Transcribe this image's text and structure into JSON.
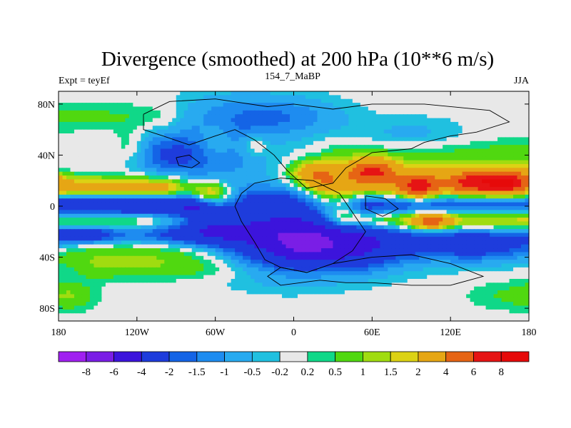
{
  "chart_data": {
    "type": "heatmap",
    "title": "Divergence (smoothed) at 200 hPa (10**6 m/s)",
    "subtitle": "154_7_MaBP",
    "left_label": "Expt = teyEf",
    "right_label": "JJA",
    "x_ticks": [
      "180",
      "120W",
      "60W",
      "0",
      "60E",
      "120E",
      "180"
    ],
    "y_ticks": [
      "80N",
      "40N",
      "0",
      "40S",
      "80S"
    ],
    "xlim": [
      -180,
      180
    ],
    "ylim": [
      -90,
      90
    ],
    "colorbar": {
      "labels": [
        "-8",
        "-6",
        "-4",
        "-2",
        "-1.5",
        "-1",
        "-0.5",
        "-0.2",
        "0.2",
        "0.5",
        "1",
        "1.5",
        "2",
        "4",
        "6",
        "8"
      ],
      "colors": [
        "#a020f0",
        "#7a1ee6",
        "#3c14dc",
        "#1e3cdc",
        "#1464e6",
        "#1e8cf0",
        "#28aaf0",
        "#20c0e0",
        "#e8e8e8",
        "#10d888",
        "#50d810",
        "#a0dc10",
        "#dcd214",
        "#e6a614",
        "#e66414",
        "#e61414",
        "#e60a0a"
      ]
    },
    "features": [
      {
        "type": "band",
        "center_lat": 0,
        "width": 7,
        "lon_range": [
          -180,
          -80
        ],
        "value": -4
      },
      {
        "type": "band",
        "center_lat": 0,
        "width": 8,
        "lon_range": [
          60,
          180
        ],
        "value": -3
      },
      {
        "type": "band",
        "center_lat": 14,
        "width": 6,
        "lon_range": [
          -180,
          -100
        ],
        "value": 3
      },
      {
        "type": "band",
        "center_lat": 18,
        "width": 10,
        "lon_range": [
          30,
          180
        ],
        "value": 3
      },
      {
        "type": "band",
        "center_lat": -10,
        "width": 6,
        "lon_range": [
          40,
          180
        ],
        "value": 3
      },
      {
        "type": "band",
        "center_lat": -10,
        "width": 6,
        "lon_range": [
          -180,
          -90
        ],
        "value": 2
      },
      {
        "type": "band",
        "center_lat": -22,
        "width": 6,
        "lon_range": [
          -180,
          -60
        ],
        "value": -1.5
      },
      {
        "type": "band",
        "center_lat": -38,
        "width": 8,
        "lon_range": [
          -180,
          -20
        ],
        "value": 1
      },
      {
        "type": "band",
        "center_lat": -50,
        "width": 6,
        "lon_range": [
          -150,
          20
        ],
        "value": 0.6
      },
      {
        "type": "band",
        "center_lat": 70,
        "width": 8,
        "lon_range": [
          -180,
          -100
        ],
        "value": 0.6
      },
      {
        "type": "band",
        "center_lat": 42,
        "width": 8,
        "lon_range": [
          40,
          180
        ],
        "value": 0.6
      },
      {
        "type": "band",
        "center_lat": -28,
        "width": 8,
        "lon_range": [
          60,
          180
        ],
        "value": -1
      },
      {
        "type": "blob",
        "lon": -10,
        "lat": -25,
        "dlon": 35,
        "dlat": 18,
        "value": -4
      },
      {
        "type": "blob",
        "lon": 30,
        "lat": -30,
        "dlon": 40,
        "dlat": 14,
        "value": -4
      },
      {
        "type": "blob",
        "lon": -70,
        "lat": -15,
        "dlon": 25,
        "dlat": 10,
        "value": -2
      },
      {
        "type": "blob",
        "lon": -95,
        "lat": 40,
        "dlon": 25,
        "dlat": 12,
        "value": -2
      },
      {
        "type": "blob",
        "lon": -50,
        "lat": 40,
        "dlon": 25,
        "dlat": 20,
        "value": -1
      },
      {
        "type": "blob",
        "lon": -40,
        "lat": 70,
        "dlon": 40,
        "dlat": 14,
        "value": -1
      },
      {
        "type": "blob",
        "lon": 0,
        "lat": 70,
        "dlon": 30,
        "dlat": 10,
        "value": -0.8
      },
      {
        "type": "blob",
        "lon": 90,
        "lat": 55,
        "dlon": 30,
        "dlat": 10,
        "value": -0.7
      },
      {
        "type": "blob",
        "lon": -20,
        "lat": 5,
        "dlon": 25,
        "dlat": 8,
        "value": -1.5
      },
      {
        "type": "blob",
        "lon": 15,
        "lat": 25,
        "dlon": 12,
        "dlat": 7,
        "value": 3
      },
      {
        "type": "blob",
        "lon": -65,
        "lat": 10,
        "dlon": 12,
        "dlat": 6,
        "value": 3
      },
      {
        "type": "blob",
        "lon": 60,
        "lat": 28,
        "dlon": 12,
        "dlat": 6,
        "value": 5
      },
      {
        "type": "blob",
        "lon": 95,
        "lat": 15,
        "dlon": 10,
        "dlat": 6,
        "value": 5
      },
      {
        "type": "blob",
        "lon": 140,
        "lat": 18,
        "dlon": 14,
        "dlat": 6,
        "value": 5
      },
      {
        "type": "blob",
        "lon": 165,
        "lat": 18,
        "dlon": 10,
        "dlat": 6,
        "value": 5
      },
      {
        "type": "blob",
        "lon": 105,
        "lat": -12,
        "dlon": 10,
        "dlat": 4,
        "value": 4
      },
      {
        "type": "blob",
        "lon": -60,
        "lat": 50,
        "dlon": 10,
        "dlat": 10,
        "value": 1
      },
      {
        "type": "blob",
        "lon": -125,
        "lat": 45,
        "dlon": 10,
        "dlat": 10,
        "value": 1
      },
      {
        "type": "blob",
        "lon": -30,
        "lat": 48,
        "dlon": 8,
        "dlat": 6,
        "value": 1
      },
      {
        "type": "blob",
        "lon": 140,
        "lat": -30,
        "dlon": 30,
        "dlat": 10,
        "value": -2
      },
      {
        "type": "blob",
        "lon": -160,
        "lat": -22,
        "dlon": 15,
        "dlat": 4,
        "value": -2
      },
      {
        "type": "blob",
        "lon": 170,
        "lat": -70,
        "dlon": 25,
        "dlat": 8,
        "value": 0.6
      },
      {
        "type": "blob",
        "lon": -170,
        "lat": -70,
        "dlon": 12,
        "dlat": 8,
        "value": 0.6
      }
    ]
  }
}
